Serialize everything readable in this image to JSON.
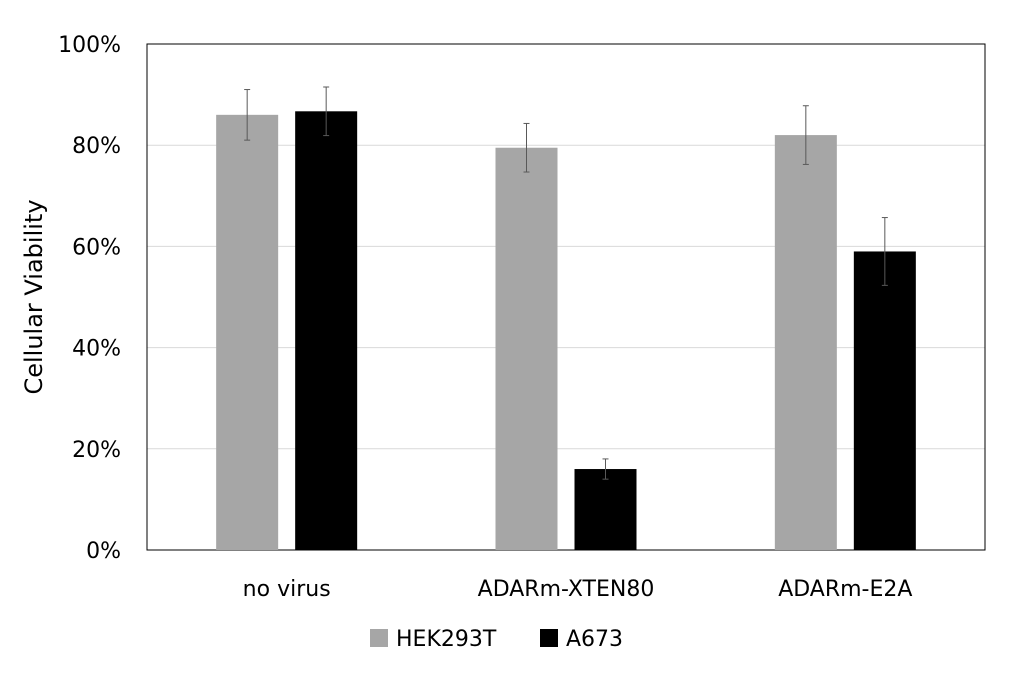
{
  "chart_data": {
    "type": "bar",
    "ylabel": "Cellular Viability",
    "xlabel": "",
    "ylim": [
      0,
      100
    ],
    "yticks": [
      0,
      20,
      40,
      60,
      80,
      100
    ],
    "ytick_labels": [
      "0%",
      "20%",
      "40%",
      "60%",
      "80%",
      "100%"
    ],
    "categories": [
      "no virus",
      "ADARm-XTEN80",
      "ADARm-E2A"
    ],
    "series": [
      {
        "name": "HEK293T",
        "color": "#a6a6a6",
        "values": [
          86,
          79.5,
          82
        ],
        "errors": [
          5,
          4.8,
          5.8
        ]
      },
      {
        "name": "A673",
        "color": "#000000",
        "values": [
          86.7,
          16,
          59
        ],
        "errors": [
          4.8,
          2,
          6.7
        ]
      }
    ],
    "grid": "horizontal",
    "legend_position": "bottom-center",
    "error_bars": true
  }
}
